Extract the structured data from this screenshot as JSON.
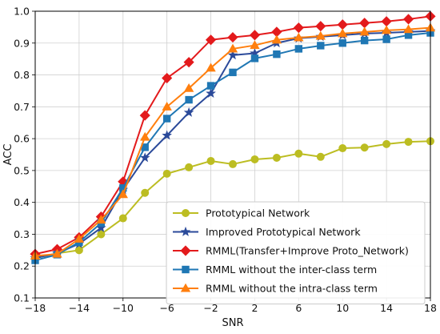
{
  "chart_data": {
    "type": "line",
    "title": "",
    "xlabel": "SNR",
    "ylabel": "ACC",
    "xlim": [
      -18,
      18
    ],
    "ylim": [
      0.1,
      1.0
    ],
    "xticks": [
      -18,
      -14,
      -10,
      -6,
      -2,
      2,
      6,
      10,
      14,
      18
    ],
    "xtick_labels": [
      "−18",
      "−14",
      "−10",
      "−6",
      "−2",
      "2",
      "6",
      "10",
      "14",
      "18"
    ],
    "yticks": [
      0.1,
      0.2,
      0.3,
      0.4,
      0.5,
      0.6,
      0.7,
      0.8,
      0.9,
      1.0
    ],
    "ytick_labels": [
      "0.1",
      "0.2",
      "0.3",
      "0.4",
      "0.5",
      "0.6",
      "0.7",
      "0.8",
      "0.9",
      "1.0"
    ],
    "grid": true,
    "legend_position": "lower-right",
    "x": [
      -18,
      -16,
      -14,
      -12,
      -10,
      -8,
      -6,
      -4,
      -2,
      0,
      2,
      4,
      6,
      8,
      10,
      12,
      14,
      16,
      18
    ],
    "series": [
      {
        "name": "Prototypical Network",
        "color": "#bcbd22",
        "marker": "circle",
        "values": [
          0.225,
          0.24,
          0.25,
          0.3,
          0.35,
          0.43,
          0.49,
          0.51,
          0.53,
          0.52,
          0.535,
          0.54,
          0.553,
          0.543,
          0.57,
          0.572,
          0.583,
          0.59,
          0.592
        ]
      },
      {
        "name": "Improved Prototypical Network",
        "color": "#2b4a9a",
        "marker": "star",
        "values": [
          0.225,
          0.24,
          0.27,
          0.32,
          0.44,
          0.54,
          0.61,
          0.682,
          0.742,
          0.862,
          0.868,
          0.9,
          0.915,
          0.92,
          0.925,
          0.93,
          0.932,
          0.935,
          0.938
        ]
      },
      {
        "name": "RMML(Transfer+Improve Proto_Network)",
        "color": "#e31a1c",
        "marker": "diamond",
        "values": [
          0.238,
          0.253,
          0.29,
          0.355,
          0.465,
          0.673,
          0.79,
          0.84,
          0.91,
          0.918,
          0.925,
          0.935,
          0.948,
          0.953,
          0.958,
          0.963,
          0.968,
          0.975,
          0.984
        ]
      },
      {
        "name": "RMML without the inter-class term",
        "color": "#1f77b4",
        "marker": "square",
        "values": [
          0.218,
          0.236,
          0.275,
          0.335,
          0.445,
          0.573,
          0.663,
          0.722,
          0.766,
          0.808,
          0.852,
          0.865,
          0.882,
          0.892,
          0.9,
          0.908,
          0.912,
          0.925,
          0.932
        ]
      },
      {
        "name": "RMML without the intra-class term",
        "color": "#ff7f0e",
        "marker": "triangle",
        "values": [
          0.232,
          0.238,
          0.285,
          0.345,
          0.425,
          0.605,
          0.7,
          0.758,
          0.822,
          0.882,
          0.893,
          0.91,
          0.917,
          0.922,
          0.93,
          0.935,
          0.94,
          0.943,
          0.948
        ]
      }
    ]
  }
}
